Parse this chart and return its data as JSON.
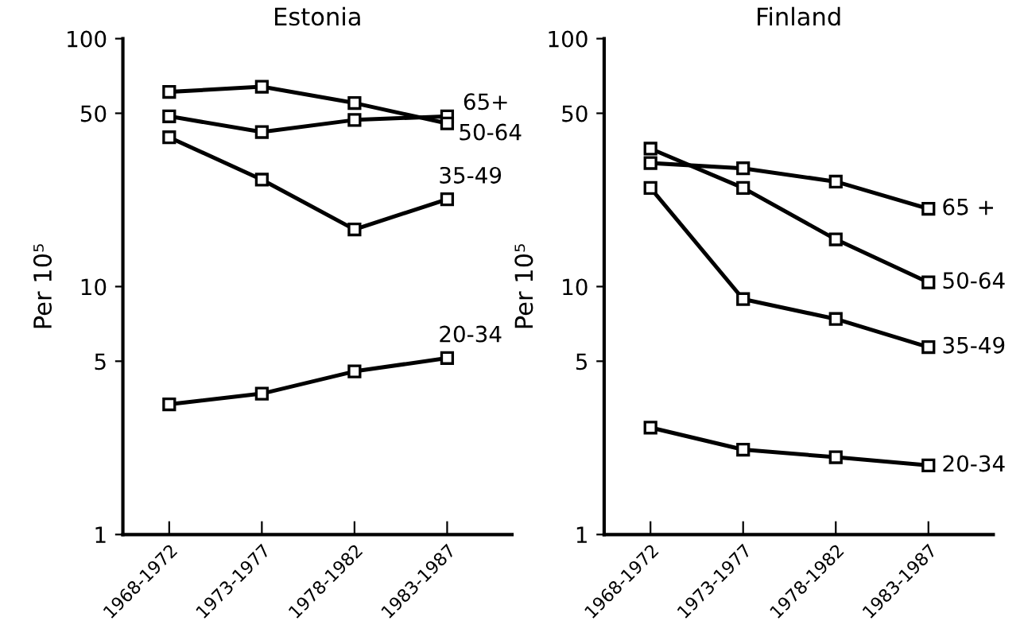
{
  "chart_data": [
    {
      "type": "line",
      "title": "Estonia",
      "ylabel": "Per 10⁵",
      "log": true,
      "ylim": [
        1,
        100
      ],
      "yticks": [
        1,
        5,
        10,
        50,
        100
      ],
      "categories": [
        "1968-1972",
        "1973-1977",
        "1978-1982",
        "1983-1987"
      ],
      "marker": "square",
      "line_style": "solid",
      "grid": false,
      "legend": false,
      "series": [
        {
          "name": "65+",
          "color": "#000000",
          "values": [
            61,
            64,
            55,
            45.5
          ]
        },
        {
          "name": "50-64",
          "color": "#000000",
          "values": [
            48.6,
            42,
            47,
            48.6
          ]
        },
        {
          "name": "35-49",
          "color": "#000000",
          "values": [
            40,
            27,
            17,
            22.5
          ]
        },
        {
          "name": "20-34",
          "color": "#000000",
          "values": [
            3.35,
            3.7,
            4.55,
            5.15
          ]
        }
      ]
    },
    {
      "type": "line",
      "title": "Finland",
      "ylabel": "Per 10⁵",
      "log": true,
      "ylim": [
        1,
        100
      ],
      "yticks": [
        1,
        5,
        10,
        50,
        100
      ],
      "categories": [
        "1968-1972",
        "1973-1977",
        "1978-1982",
        "1983-1987"
      ],
      "marker": "square",
      "line_style": "solid",
      "grid": false,
      "legend": false,
      "series": [
        {
          "name": "65 +",
          "color": "#000000",
          "values": [
            31.5,
            30,
            26.5,
            20.6
          ]
        },
        {
          "name": "50-64",
          "color": "#000000",
          "values": [
            36,
            25,
            15.5,
            10.4
          ]
        },
        {
          "name": "35-49",
          "color": "#000000",
          "values": [
            25,
            8.9,
            7.4,
            5.7
          ]
        },
        {
          "name": "20-34",
          "color": "#000000",
          "values": [
            2.7,
            2.2,
            2.05,
            1.9
          ]
        }
      ]
    }
  ]
}
